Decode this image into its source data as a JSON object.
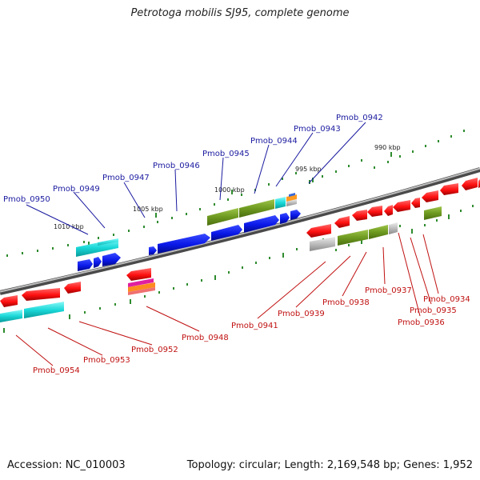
{
  "title": "Petrotoga mobilis SJ95, complete genome",
  "footer": {
    "accession_label": "Accession:",
    "accession_value": "NC_010003",
    "topology_label": "Topology:",
    "topology_value": "circular",
    "length_label": "Length:",
    "length_value": "2,169,548 bp",
    "genes_label": "Genes:",
    "genes_value": "1,952"
  },
  "scale_labels": [
    "990 kbp",
    "995 kbp",
    "1000 kbp",
    "1005 kbp",
    "1010 kbp"
  ],
  "genes_forward": [
    "Pmob_0942",
    "Pmob_0943",
    "Pmob_0944",
    "Pmob_0945",
    "Pmob_0946",
    "Pmob_0947",
    "Pmob_0949",
    "Pmob_0950"
  ],
  "genes_reverse": [
    "Pmob_0934",
    "Pmob_0935",
    "Pmob_0936",
    "Pmob_0937",
    "Pmob_0938",
    "Pmob_0939",
    "Pmob_0941",
    "Pmob_0948",
    "Pmob_0952",
    "Pmob_0953",
    "Pmob_0954"
  ],
  "colors": {
    "forward_label": "#1a1aa0",
    "reverse_label": "#c01010",
    "backbone": "#808080",
    "tick": "#2e8b2e",
    "red_gene": "#ff1a1a",
    "blue_gene": "#0a18e8",
    "cyan_gene": "#1ad8d8",
    "olive_gene": "#6e9a20",
    "gray_gene": "#b8b8b8"
  }
}
